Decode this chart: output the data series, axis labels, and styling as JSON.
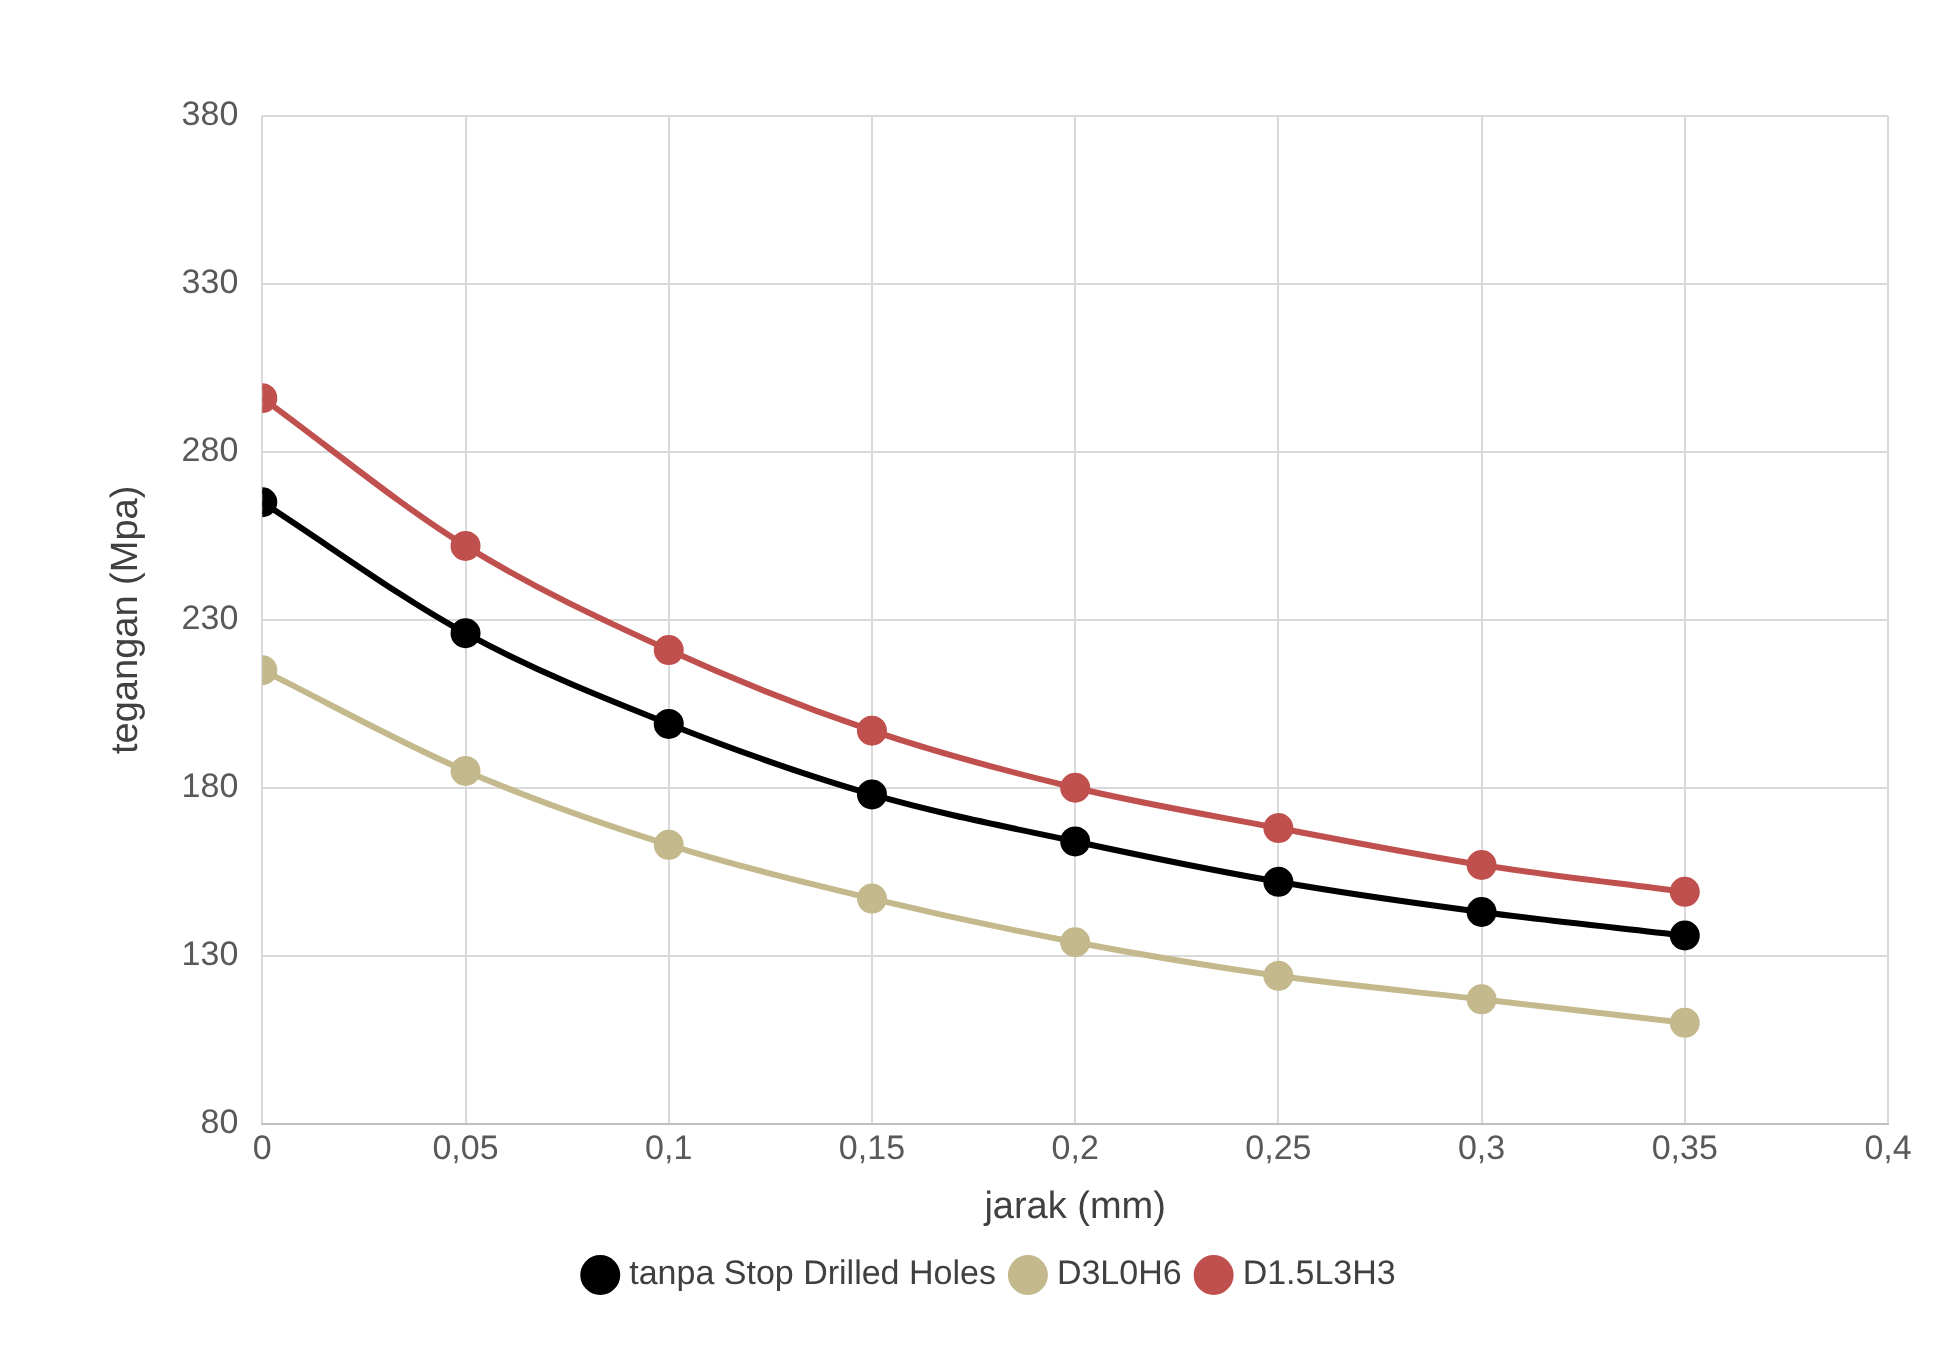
{
  "chart_data": {
    "type": "line",
    "xlabel": "jarak (mm)",
    "ylabel": "tegangan (Mpa)",
    "x": [
      0,
      0.05,
      0.1,
      0.15,
      0.2,
      0.25,
      0.3,
      0.35
    ],
    "series": [
      {
        "name": "tanpa Stop Drilled Holes",
        "color": "#000000",
        "values": [
          265,
          226,
          199,
          178,
          164,
          152,
          143,
          136
        ]
      },
      {
        "name": "D3L0H6",
        "color": "#c4b98c",
        "values": [
          215,
          185,
          163,
          147,
          134,
          124,
          117,
          110
        ]
      },
      {
        "name": "D1.5L3H3",
        "color": "#c0504d",
        "values": [
          296,
          252,
          221,
          197,
          180,
          168,
          157,
          149
        ]
      }
    ],
    "xlim": [
      0,
      0.4
    ],
    "xticks": [
      0,
      {
        "value": 0.05,
        "label": "0,05"
      },
      {
        "value": 0.1,
        "label": "0,1"
      },
      {
        "value": 0.15,
        "label": "0,15"
      },
      {
        "value": 0.2,
        "label": "0,2"
      },
      {
        "value": 0.25,
        "label": "0,25"
      },
      {
        "value": 0.3,
        "label": "0,3"
      },
      {
        "value": 0.35,
        "label": "0,35"
      },
      {
        "value": 0.4,
        "label": "0,4"
      }
    ],
    "ylim": [
      80,
      380
    ],
    "yticks": [
      80,
      130,
      180,
      230,
      280,
      330,
      380
    ],
    "grid": true,
    "legend": "bottom",
    "marker": "circle",
    "line_style": "solid"
  }
}
